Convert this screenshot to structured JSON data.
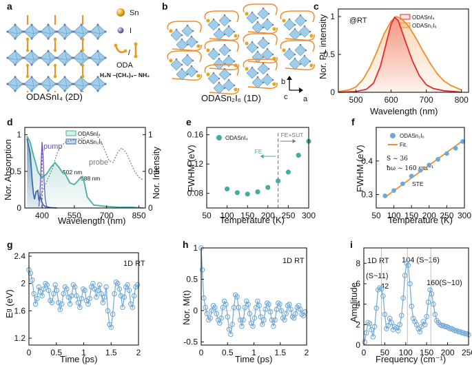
{
  "panels": {
    "a": {
      "label": "a",
      "caption": "ODASnI₄ (2D)",
      "legend": {
        "sn": "Sn",
        "i": "I",
        "oda": "ODA",
        "oda_formula": "H₂N –(CH₂)₈– NH₂"
      }
    },
    "b": {
      "label": "b",
      "caption": "ODASn₂I₆ (1D)",
      "axes": {
        "b": "b",
        "c": "c",
        "a": "a"
      }
    },
    "c": {
      "label": "c",
      "annotation": "@RT",
      "legend": [
        "ODASnI₄",
        "ODASn₂I₆"
      ],
      "xlabel": "Wavelength (nm)",
      "ylabel": "Nor. PL intensity"
    },
    "d": {
      "label": "d",
      "legend": [
        "ODASnI₄",
        "ODASn₂I₆"
      ],
      "annotations": {
        "pump": "pump",
        "probe": "probe",
        "peak1": "502 nm",
        "peak2": "588 nm"
      },
      "xlabel": "Wavelength (nm)",
      "ylabel_left": "Nor. Absorption",
      "ylabel_right": "Nor. Intensity"
    },
    "e": {
      "label": "e",
      "legend": "ODASnI₄",
      "annotations": {
        "fe": "FE",
        "fe_sut": "FE+SUT"
      },
      "xlabel": "Temperature (K)",
      "ylabel": "FWHM (eV)"
    },
    "f": {
      "label": "f",
      "legend": [
        "ODASn₂I₆",
        "Fit."
      ],
      "annotations": {
        "s": "S ~ 36",
        "hw": "ħω ~ 160 cm⁻¹",
        "ste": "STE"
      },
      "xlabel": "Temperature (K)",
      "ylabel": "FWHM (eV)"
    },
    "g": {
      "label": "g",
      "annotation": "1D RT",
      "xlabel": "Time (ps)",
      "ylabel": "Eᵍ (eV)"
    },
    "h": {
      "label": "h",
      "annotation": "1D RT",
      "xlabel": "Time (ps)",
      "ylabel": "Nor. M(t)"
    },
    "i": {
      "label": "i",
      "annotations": {
        "rt": "1D RT",
        "s11": "(S~11)",
        "p42": "42",
        "p104": "104 (S~16)",
        "p160": "160(S~10)"
      },
      "xlabel": "Frequency (cm⁻¹)",
      "ylabel": "Amplitude"
    }
  },
  "colors": {
    "red": "#e8262b",
    "orange": "#f38b26",
    "teal": "#45ada0",
    "blue": "#3b6aad",
    "purple": "#6a4fb5",
    "lightblue": "#6ea8d8",
    "octa": "#9fcdea",
    "sn": "#e3a51c",
    "iodine": "#6f7ea6"
  },
  "chart_data": [
    {
      "id": "c",
      "type": "line",
      "xlim": [
        450,
        820
      ],
      "ylim": [
        0,
        1.1
      ],
      "xticks": [
        500,
        600,
        700,
        800
      ],
      "yticks": [
        0.0,
        0.5,
        1.0
      ],
      "series": [
        {
          "name": "ODASnI₄",
          "x": [
            450,
            500,
            530,
            550,
            570,
            590,
            600,
            610,
            620,
            640,
            660,
            680,
            700,
            720,
            750,
            780,
            800
          ],
          "y": [
            0.0,
            0.01,
            0.04,
            0.12,
            0.35,
            0.72,
            0.9,
            0.99,
            0.95,
            0.68,
            0.42,
            0.22,
            0.1,
            0.05,
            0.02,
            0.01,
            0.0
          ]
        },
        {
          "name": "ODASn₂I₆",
          "x": [
            450,
            480,
            500,
            520,
            540,
            560,
            580,
            600,
            615,
            630,
            650,
            670,
            690,
            710,
            730,
            750,
            770,
            790,
            800
          ],
          "y": [
            0.01,
            0.03,
            0.07,
            0.17,
            0.33,
            0.54,
            0.77,
            0.94,
            1.0,
            0.97,
            0.87,
            0.72,
            0.55,
            0.39,
            0.25,
            0.15,
            0.09,
            0.05,
            0.03
          ]
        }
      ]
    },
    {
      "id": "d",
      "type": "line",
      "xlim": [
        320,
        880
      ],
      "ylim": [
        0,
        1.1
      ],
      "y2lim": [
        0,
        1.1
      ],
      "xticks": [
        400,
        550,
        700,
        850
      ],
      "yticks": [
        0.0,
        0.5,
        1.0
      ],
      "y2ticks": [
        0.0,
        0.5,
        1.0
      ],
      "series": [
        {
          "name": "ODASnI₄",
          "x": [
            330,
            345,
            360,
            370,
            380,
            390,
            400,
            420,
            440,
            460,
            480,
            495,
            502,
            510,
            530,
            550,
            570,
            580,
            588,
            596,
            610,
            640,
            700,
            760,
            820,
            870
          ],
          "y": [
            0.98,
            0.9,
            0.72,
            0.62,
            0.5,
            0.45,
            0.42,
            0.46,
            0.55,
            0.62,
            0.55,
            0.48,
            0.5,
            0.45,
            0.34,
            0.32,
            0.38,
            0.42,
            0.43,
            0.35,
            0.15,
            0.04,
            0.02,
            0.01,
            0.01,
            0.0
          ]
        },
        {
          "name": "ODASn₂I₆",
          "x": [
            330,
            345,
            355,
            360,
            365,
            372,
            380,
            386,
            392,
            398,
            404,
            410,
            420,
            440,
            470
          ],
          "y": [
            0.95,
            0.75,
            0.35,
            0.2,
            0.12,
            0.22,
            0.24,
            0.1,
            0.16,
            0.09,
            0.05,
            0.03,
            0.015,
            0.005,
            0.0
          ]
        },
        {
          "name": "pump",
          "x": [
            385,
            390,
            395,
            400,
            405,
            410,
            415,
            420,
            425
          ],
          "y": [
            0.02,
            0.15,
            0.55,
            0.9,
            0.7,
            0.35,
            0.12,
            0.04,
            0.0
          ]
        },
        {
          "name": "probe",
          "x": [
            390,
            420,
            450,
            470,
            490,
            510,
            530,
            550,
            570,
            590,
            610,
            630,
            650,
            670,
            690,
            710,
            730,
            750,
            770,
            790,
            810,
            830,
            850,
            870
          ],
          "y": [
            0.15,
            0.35,
            0.55,
            0.75,
            0.85,
            0.9,
            0.92,
            0.93,
            0.94,
            0.95,
            1.0,
            1.02,
            1.0,
            0.93,
            0.8,
            0.65,
            0.62,
            0.75,
            0.82,
            0.76,
            0.63,
            0.5,
            0.42,
            0.38
          ]
        }
      ]
    },
    {
      "id": "e",
      "type": "scatter",
      "xlim": [
        50,
        300
      ],
      "ylim": [
        0.06,
        0.17
      ],
      "xticks": [
        50,
        100,
        150,
        200,
        250,
        300
      ],
      "yticks": [
        0.08,
        0.12,
        0.16
      ],
      "series": [
        {
          "name": "ODASnI₄",
          "x": [
            100,
            125,
            150,
            175,
            200,
            225,
            250,
            275,
            300
          ],
          "y": [
            0.086,
            0.081,
            0.079,
            0.082,
            0.088,
            0.097,
            0.109,
            0.132,
            0.151
          ]
        }
      ]
    },
    {
      "id": "f",
      "type": "scatter",
      "xlim": [
        50,
        300
      ],
      "ylim": [
        0.26,
        0.5
      ],
      "xticks": [
        50,
        100,
        150,
        200,
        250,
        300
      ],
      "yticks": [
        0.3,
        0.4
      ],
      "series": [
        {
          "name": "ODASn₂I₆",
          "x": [
            75,
            100,
            125,
            150,
            175,
            200,
            225,
            250,
            275,
            295
          ],
          "y": [
            0.296,
            0.312,
            0.332,
            0.355,
            0.372,
            0.388,
            0.405,
            0.422,
            0.438,
            0.458
          ]
        },
        {
          "name": "Fit.",
          "x": [
            75,
            295
          ],
          "y": [
            0.292,
            0.46
          ]
        }
      ]
    },
    {
      "id": "g",
      "type": "line",
      "xlim": [
        0.0,
        2.0
      ],
      "ylim": [
        1.1,
        2.45
      ],
      "xticks": [
        0.0,
        0.5,
        1.0,
        1.5,
        2.0
      ],
      "yticks": [
        1.2,
        1.6,
        2.0,
        2.4
      ],
      "series": [
        {
          "name": "1D RT",
          "x": [
            0.0,
            0.03,
            0.06,
            0.09,
            0.12,
            0.15,
            0.18,
            0.21,
            0.24,
            0.27,
            0.3,
            0.33,
            0.36,
            0.39,
            0.42,
            0.45,
            0.48,
            0.51,
            0.54,
            0.57,
            0.6,
            0.63,
            0.66,
            0.69,
            0.72,
            0.75,
            0.78,
            0.81,
            0.84,
            0.87,
            0.9,
            0.93,
            0.96,
            0.99,
            1.02,
            1.05,
            1.08,
            1.11,
            1.14,
            1.17,
            1.2,
            1.23,
            1.26,
            1.29,
            1.32,
            1.35,
            1.38,
            1.41,
            1.44,
            1.47,
            1.5,
            1.53,
            1.56,
            1.59,
            1.62,
            1.65,
            1.68,
            1.71,
            1.74,
            1.77,
            1.8,
            1.83,
            1.86,
            1.89,
            1.92,
            1.95,
            1.98
          ],
          "y": [
            2.2,
            2.15,
            2.05,
            1.85,
            1.7,
            1.78,
            1.95,
            1.88,
            1.82,
            1.92,
            2.0,
            1.98,
            1.9,
            1.75,
            1.72,
            1.85,
            1.98,
            1.9,
            1.72,
            1.62,
            1.7,
            1.85,
            1.95,
            1.92,
            1.8,
            1.7,
            1.82,
            1.98,
            1.95,
            1.82,
            1.72,
            1.65,
            1.78,
            1.92,
            1.9,
            1.75,
            1.7,
            1.78,
            1.95,
            2.0,
            1.92,
            1.8,
            1.9,
            1.98,
            1.85,
            1.72,
            1.8,
            1.95,
            1.6,
            1.4,
            1.36,
            1.55,
            1.85,
            2.02,
            2.0,
            1.92,
            1.82,
            1.65,
            1.8,
            1.95,
            1.98,
            1.9,
            1.7,
            1.65,
            1.82,
            1.95,
            1.98
          ]
        }
      ]
    },
    {
      "id": "h",
      "type": "line",
      "xlim": [
        0.0,
        2.0
      ],
      "ylim": [
        -0.55,
        1.0
      ],
      "xticks": [
        0.0,
        0.5,
        1.0,
        1.5,
        2.0
      ],
      "yticks": [
        -0.5,
        0.0,
        0.5,
        1.0
      ],
      "series": [
        {
          "name": "1D RT",
          "x": [
            0.0,
            0.02,
            0.05,
            0.08,
            0.11,
            0.14,
            0.17,
            0.2,
            0.23,
            0.26,
            0.29,
            0.32,
            0.35,
            0.38,
            0.41,
            0.44,
            0.47,
            0.5,
            0.53,
            0.56,
            0.59,
            0.62,
            0.65,
            0.68,
            0.71,
            0.74,
            0.77,
            0.8,
            0.83,
            0.86,
            0.89,
            0.92,
            0.95,
            0.98,
            1.01,
            1.04,
            1.07,
            1.1,
            1.13,
            1.16,
            1.19,
            1.22,
            1.25,
            1.28,
            1.31,
            1.34,
            1.37,
            1.4,
            1.43,
            1.46,
            1.49,
            1.52,
            1.55,
            1.58,
            1.61,
            1.64,
            1.67,
            1.7,
            1.73,
            1.76,
            1.79,
            1.82,
            1.85,
            1.88,
            1.91,
            1.94,
            1.97
          ],
          "y": [
            1.0,
            0.65,
            0.2,
            0.05,
            -0.05,
            -0.15,
            -0.12,
            0.0,
            0.08,
            0.05,
            -0.05,
            -0.15,
            -0.2,
            -0.12,
            0.05,
            0.15,
            0.1,
            -0.1,
            -0.3,
            -0.38,
            -0.22,
            0.05,
            0.25,
            0.22,
            0.05,
            -0.15,
            -0.25,
            -0.15,
            0.05,
            0.15,
            0.1,
            -0.05,
            -0.2,
            -0.25,
            -0.12,
            0.05,
            0.15,
            0.08,
            -0.1,
            -0.22,
            -0.15,
            0.02,
            0.12,
            0.1,
            -0.02,
            -0.15,
            -0.25,
            -0.15,
            0.02,
            0.12,
            0.1,
            0.0,
            -0.12,
            -0.15,
            -0.05,
            0.08,
            0.1,
            0.02,
            -0.1,
            -0.12,
            -0.05,
            0.05,
            0.08,
            0.02,
            -0.06,
            -0.08,
            -0.02
          ]
        }
      ]
    },
    {
      "id": "i",
      "type": "line",
      "xlim": [
        0,
        250
      ],
      "ylim": [
        0,
        9.5
      ],
      "xticks": [
        0,
        50,
        100,
        150,
        200,
        250
      ],
      "yticks": [
        0,
        2,
        4,
        6,
        8
      ],
      "series": [
        {
          "name": "1D RT",
          "x": [
            2,
            6,
            10,
            14,
            18,
            22,
            26,
            30,
            34,
            38,
            42,
            46,
            50,
            54,
            58,
            62,
            66,
            70,
            74,
            78,
            82,
            86,
            90,
            94,
            98,
            102,
            106,
            110,
            114,
            118,
            122,
            126,
            130,
            134,
            138,
            142,
            146,
            150,
            154,
            158,
            162,
            166,
            170,
            174,
            178,
            182,
            186,
            190,
            194,
            198,
            202,
            206,
            210,
            214,
            218,
            222,
            226,
            230,
            234,
            238,
            242,
            246,
            250
          ],
          "y": [
            0.3,
            1.2,
            2.2,
            2.1,
            1.5,
            0.8,
            1.8,
            3.6,
            5.4,
            5.6,
            5.5,
            4.8,
            3.0,
            1.6,
            1.9,
            2.6,
            2.2,
            1.5,
            1.8,
            1.7,
            1.4,
            2.0,
            2.9,
            4.6,
            6.8,
            8.0,
            7.8,
            6.0,
            3.8,
            2.6,
            2.3,
            2.0,
            1.6,
            1.3,
            1.8,
            2.3,
            2.0,
            2.8,
            4.2,
            5.4,
            5.0,
            4.0,
            3.0,
            2.4,
            2.2,
            2.0,
            1.9,
            1.9,
            1.8,
            1.8,
            1.7,
            1.6,
            1.6,
            1.5,
            1.4,
            1.4,
            1.3,
            1.3,
            1.2,
            1.2,
            1.1,
            1.1,
            1.0
          ]
        }
      ],
      "vlines": [
        42,
        104,
        160
      ]
    }
  ]
}
